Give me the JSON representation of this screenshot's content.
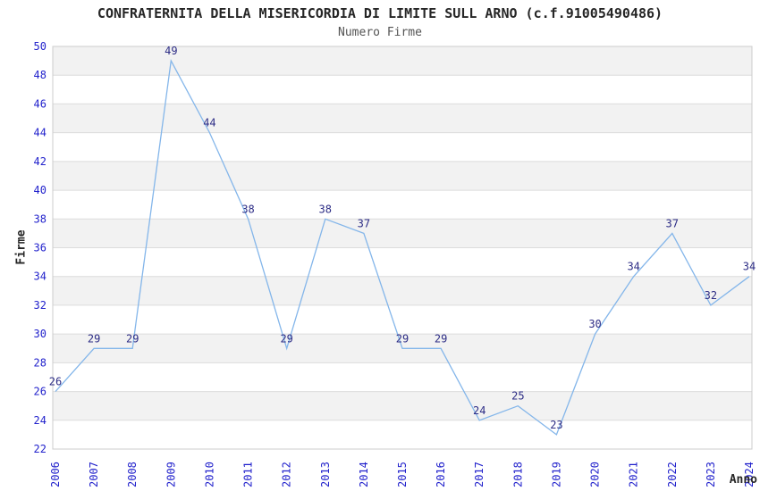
{
  "chart_data": {
    "type": "line",
    "title": "CONFRATERNITA DELLA MISERICORDIA DI LIMITE SULL ARNO (c.f.91005490486)",
    "subtitle": "Numero Firme",
    "xlabel": "Anno",
    "ylabel": "Firme",
    "categories": [
      "2006",
      "2007",
      "2008",
      "2009",
      "2010",
      "2011",
      "2012",
      "2013",
      "2014",
      "2015",
      "2016",
      "2017",
      "2018",
      "2019",
      "2020",
      "2021",
      "2022",
      "2023",
      "2024"
    ],
    "values": [
      26,
      29,
      29,
      49,
      44,
      38,
      29,
      38,
      37,
      29,
      29,
      24,
      25,
      23,
      30,
      34,
      37,
      32,
      34
    ],
    "ylim": [
      22,
      50
    ],
    "ytick_step": 2,
    "grid": "horizontal-bands-alternating",
    "legend": "none",
    "point_labels": true,
    "colors": {
      "line": "#84b6ea",
      "tick_label": "#2222cc",
      "point_label": "#2d2d86",
      "band": "#f2f2f2",
      "gridline": "#dcdcdc",
      "border": "#cccccc",
      "title": "#262626",
      "subtitle": "#545454",
      "background": "#ffffff"
    }
  }
}
